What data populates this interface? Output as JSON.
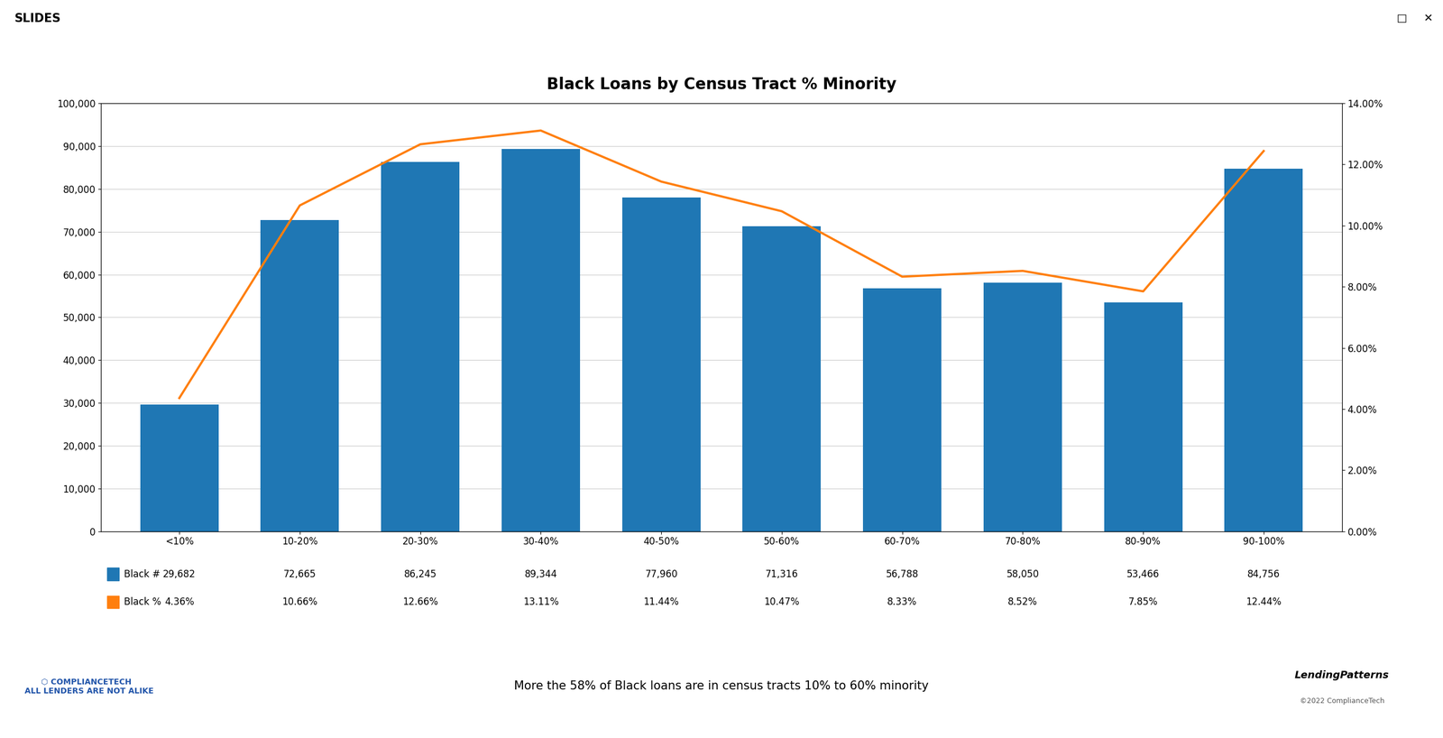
{
  "chart_data": {
    "type": "bar",
    "title": "Black Loans by Census Tract % Minority",
    "categories": [
      "<10%",
      "10-20%",
      "20-30%",
      "30-40%",
      "40-50%",
      "50-60%",
      "60-70%",
      "70-80%",
      "80-90%",
      "90-100%"
    ],
    "series": [
      {
        "name": "Black #",
        "type": "bar",
        "values": [
          29682,
          72665,
          86245,
          89344,
          77960,
          71316,
          56788,
          58050,
          53466,
          84756
        ],
        "value_labels": [
          "29,682",
          "72,665",
          "86,245",
          "89,344",
          "77,960",
          "71,316",
          "56,788",
          "58,050",
          "53,466",
          "84,756"
        ]
      },
      {
        "name": "Black %",
        "type": "line",
        "axis": "y2",
        "values": [
          0.0436,
          0.1066,
          0.1266,
          0.1311,
          0.1144,
          0.1047,
          0.0833,
          0.0852,
          0.0785,
          0.1244
        ],
        "value_labels": [
          "4.36%",
          "10.66%",
          "12.66%",
          "13.11%",
          "11.44%",
          "10.47%",
          "8.33%",
          "8.52%",
          "7.85%",
          "12.44%"
        ]
      }
    ],
    "ylim": [
      0,
      100000
    ],
    "yticks": [
      0,
      {
        "value": 10000,
        "label": "10,000"
      },
      {
        "value": 20000,
        "label": "20,000"
      },
      {
        "value": 30000,
        "label": "30,000"
      },
      {
        "value": 40000,
        "label": "40,000"
      },
      {
        "value": 50000,
        "label": "50,000"
      },
      {
        "value": 60000,
        "label": "60,000"
      },
      {
        "value": 70000,
        "label": "70,000"
      },
      {
        "value": 80000,
        "label": "80,000"
      },
      {
        "value": 90000,
        "label": "90,000"
      },
      {
        "value": 100000,
        "label": "100,000"
      }
    ],
    "y2lim": [
      0.0,
      0.14
    ],
    "y2ticks": [
      {
        "value": 0.0,
        "label": "0.00%"
      },
      {
        "value": 0.02,
        "label": "2.00%"
      },
      {
        "value": 0.04,
        "label": "4.00%"
      },
      {
        "value": 0.06,
        "label": "6.00%"
      },
      {
        "value": 0.08,
        "label": "8.00%"
      },
      {
        "value": 0.1,
        "label": "10.00%"
      },
      {
        "value": 0.12,
        "label": "12.00%"
      },
      {
        "value": 0.14,
        "label": "14.00%"
      }
    ],
    "grid": true,
    "annotations": [
      "More the 58% of Black loans are in census tracts 10% to 60% minority",
      "SLIDES",
      "⬡ COMPLIANCETECH\n  ALL LENDERS ARE NOT ALIKE",
      "LendingPatterns",
      "©2022 ComplianceTech",
      "□",
      "✕"
    ]
  }
}
